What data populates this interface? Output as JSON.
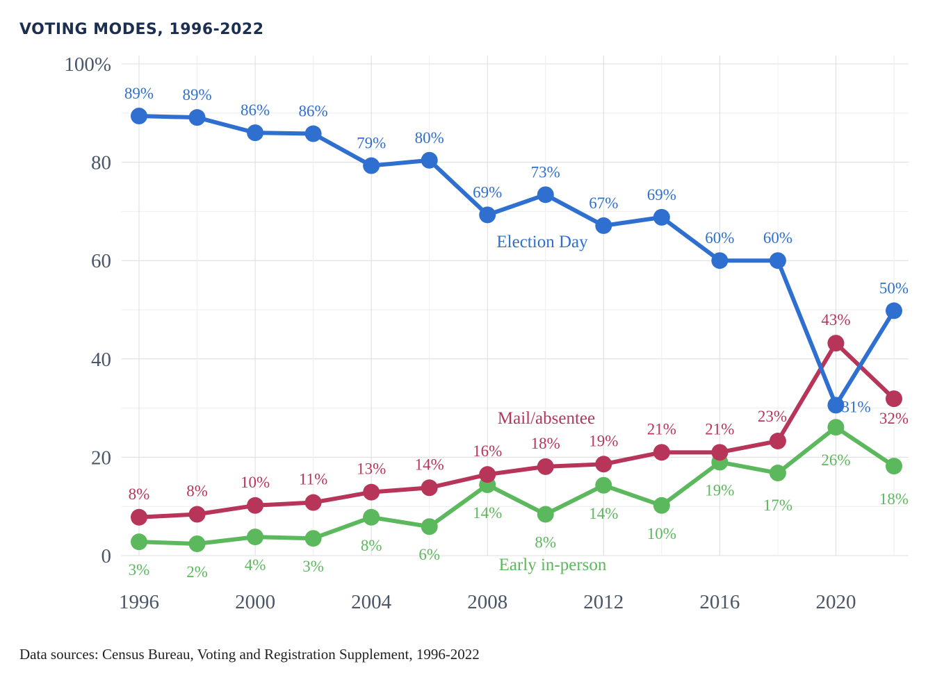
{
  "title": "VOTING MODES, 1996-2022",
  "source": "Data sources: Census Bureau, Voting and Registration Supplement, 1996-2022",
  "chart_data": {
    "type": "line",
    "title": "VOTING MODES, 1996-2022",
    "xlabel": "",
    "ylabel": "",
    "x": [
      1996,
      1998,
      2000,
      2002,
      2004,
      2006,
      2008,
      2010,
      2012,
      2014,
      2016,
      2018,
      2020,
      2022
    ],
    "xlim": [
      1996,
      2022
    ],
    "ylim": [
      0,
      100
    ],
    "x_ticks": [
      "1996",
      "2000",
      "2004",
      "2008",
      "2012",
      "2016",
      "2020"
    ],
    "y_ticks": [
      "0",
      "20",
      "40",
      "60",
      "80",
      "100%"
    ],
    "grid": true,
    "series": [
      {
        "name": "Election Day",
        "color": "#2e6fcf",
        "values": [
          89.4,
          89.1,
          86.0,
          85.8,
          79.3,
          80.4,
          69.3,
          73.4,
          67.1,
          68.8,
          60.0,
          60.0,
          30.6,
          49.8
        ],
        "labels": [
          "89%",
          "89%",
          "86%",
          "86%",
          "79%",
          "80%",
          "69%",
          "73%",
          "67%",
          "69%",
          "60%",
          "60%",
          "31%",
          "50%"
        ]
      },
      {
        "name": "Mail/absentee",
        "color": "#b8355a",
        "values": [
          7.8,
          8.4,
          10.2,
          10.8,
          12.9,
          13.8,
          16.5,
          18.1,
          18.6,
          21.0,
          21.0,
          23.3,
          43.2,
          31.9
        ],
        "labels": [
          "8%",
          "8%",
          "10%",
          "11%",
          "13%",
          "14%",
          "16%",
          "18%",
          "19%",
          "21%",
          "21%",
          "23%",
          "43%",
          "32%"
        ]
      },
      {
        "name": "Early in-person",
        "color": "#5cb85c",
        "values": [
          2.8,
          2.4,
          3.8,
          3.5,
          7.8,
          5.9,
          14.4,
          8.4,
          14.3,
          10.2,
          19.0,
          16.8,
          26.1,
          18.2
        ],
        "labels": [
          "3%",
          "2%",
          "4%",
          "3%",
          "8%",
          "6%",
          "14%",
          "8%",
          "14%",
          "10%",
          "19%",
          "17%",
          "26%",
          "18%"
        ]
      }
    ]
  }
}
